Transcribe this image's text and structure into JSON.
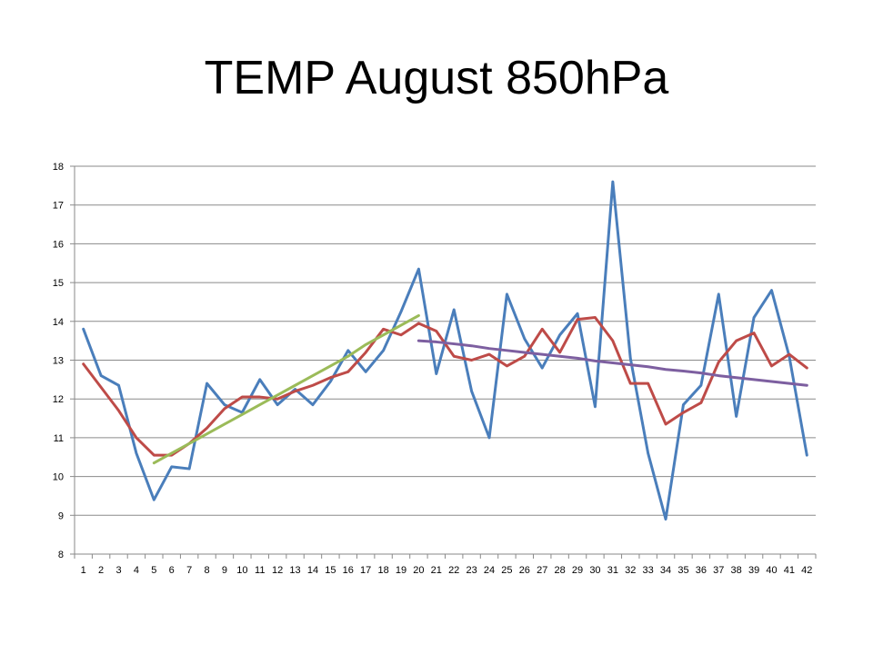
{
  "slide": {
    "title": "TEMP August 850hPa"
  },
  "chart_data": {
    "type": "line",
    "title": "",
    "xlabel": "",
    "ylabel": "",
    "ylim": [
      8,
      18
    ],
    "y_ticks": [
      8,
      9,
      10,
      11,
      12,
      13,
      14,
      15,
      16,
      17,
      18
    ],
    "grid": true,
    "legend": "none",
    "x": [
      1,
      2,
      3,
      4,
      5,
      6,
      7,
      8,
      9,
      10,
      11,
      12,
      13,
      14,
      15,
      16,
      17,
      18,
      19,
      20,
      21,
      22,
      23,
      24,
      25,
      26,
      27,
      28,
      29,
      30,
      31,
      32,
      33,
      34,
      35,
      36,
      37,
      38,
      39,
      40,
      41,
      42
    ],
    "series": [
      {
        "color": "#4a7ebb",
        "x": [
          1,
          2,
          3,
          4,
          5,
          6,
          7,
          8,
          9,
          10,
          11,
          12,
          13,
          14,
          15,
          16,
          17,
          18,
          19,
          20,
          21,
          22,
          23,
          24,
          25,
          26,
          27,
          28,
          29,
          30,
          31,
          32,
          33,
          34,
          35,
          36,
          37,
          38,
          39,
          40,
          41,
          42
        ],
        "values": [
          13.8,
          12.6,
          12.35,
          10.6,
          9.4,
          10.25,
          10.2,
          12.4,
          11.85,
          11.65,
          12.5,
          11.85,
          12.25,
          11.85,
          12.45,
          13.25,
          12.7,
          13.25,
          14.25,
          15.35,
          12.65,
          14.3,
          12.2,
          11.0,
          14.7,
          13.55,
          12.8,
          13.65,
          14.2,
          11.8,
          17.6,
          13.05,
          10.6,
          8.9,
          11.85,
          12.35,
          14.7,
          11.55,
          14.1,
          14.8,
          13.1,
          10.55
        ]
      },
      {
        "color": "#be4b48",
        "x": [
          1,
          2,
          3,
          4,
          5,
          6,
          7,
          8,
          9,
          10,
          11,
          12,
          13,
          14,
          15,
          16,
          17,
          18,
          19,
          20,
          21,
          22,
          23,
          24,
          25,
          26,
          27,
          28,
          29,
          30,
          31,
          32,
          33,
          34,
          35,
          36,
          37,
          38,
          39,
          40,
          41,
          42
        ],
        "values": [
          12.9,
          12.3,
          11.7,
          11.0,
          10.55,
          10.55,
          10.85,
          11.25,
          11.75,
          12.05,
          12.05,
          12.0,
          12.2,
          12.35,
          12.55,
          12.7,
          13.2,
          13.8,
          13.65,
          13.95,
          13.75,
          13.1,
          13.0,
          13.15,
          12.85,
          13.1,
          13.8,
          13.2,
          14.05,
          14.1,
          13.5,
          12.4,
          12.4,
          11.35,
          11.65,
          11.9,
          12.95,
          13.5,
          13.7,
          12.85,
          13.15,
          12.8
        ]
      },
      {
        "color": "#9bbb59",
        "x": [
          5,
          6,
          7,
          8,
          9,
          10,
          11,
          12,
          13,
          14,
          15,
          16,
          17,
          18,
          19,
          20
        ],
        "values": [
          10.35,
          10.6,
          10.85,
          11.1,
          11.35,
          11.6,
          11.85,
          12.1,
          12.35,
          12.6,
          12.85,
          13.1,
          13.4,
          13.65,
          13.9,
          14.15
        ]
      },
      {
        "color": "#7d5fa0",
        "x": [
          20,
          21,
          22,
          23,
          24,
          25,
          26,
          27,
          28,
          29,
          30,
          31,
          32,
          33,
          34,
          35,
          36,
          37,
          38,
          39,
          40,
          41,
          42
        ],
        "values": [
          13.5,
          13.47,
          13.42,
          13.37,
          13.3,
          13.25,
          13.2,
          13.15,
          13.1,
          13.05,
          12.98,
          12.93,
          12.88,
          12.83,
          12.76,
          12.72,
          12.67,
          12.6,
          12.55,
          12.5,
          12.45,
          12.4,
          12.35
        ]
      }
    ]
  }
}
